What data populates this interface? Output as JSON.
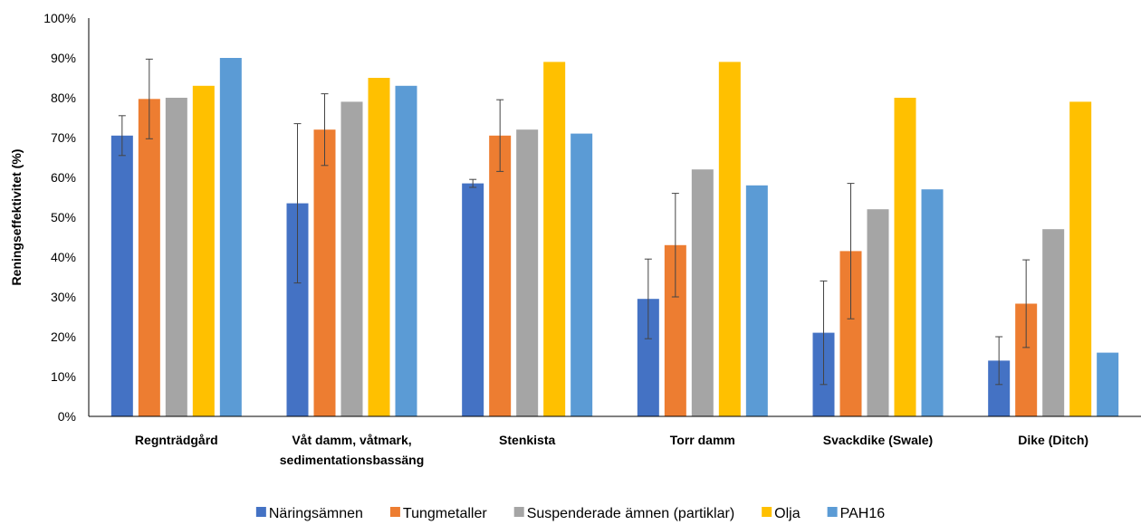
{
  "chart_data": {
    "type": "bar",
    "title": "",
    "xlabel": "",
    "ylabel": "Reningseffektivitet (%)",
    "ylim": [
      0,
      100
    ],
    "yticks": [
      "0%",
      "10%",
      "20%",
      "30%",
      "40%",
      "50%",
      "60%",
      "70%",
      "80%",
      "90%",
      "100%"
    ],
    "grid": false,
    "legend_position": "bottom",
    "categories": [
      [
        "Regnträdgård"
      ],
      [
        "Våt damm, våtmark,",
        "sedimentationsbassäng"
      ],
      [
        "Stenkista"
      ],
      [
        "Torr damm"
      ],
      [
        "Svackdike (Swale)"
      ],
      [
        "Dike (Ditch)"
      ]
    ],
    "series": [
      {
        "name": "Näringsämnen",
        "color": "#4472C4",
        "values": [
          70.5,
          53.5,
          58.5,
          29.5,
          21,
          14
        ],
        "error": [
          5,
          20,
          1,
          10,
          13,
          6
        ]
      },
      {
        "name": "Tungmetaller",
        "color": "#ED7D31",
        "values": [
          79.7,
          72,
          70.5,
          43,
          41.5,
          28.3
        ],
        "error": [
          10,
          9,
          9,
          13,
          17,
          11
        ]
      },
      {
        "name": "Suspenderade ämnen (partiklar)",
        "color": "#A5A5A5",
        "values": [
          80,
          79,
          72,
          62,
          52,
          47
        ],
        "error": null
      },
      {
        "name": "Olja",
        "color": "#FFC000",
        "values": [
          83,
          85,
          89,
          89,
          80,
          79
        ],
        "error": null
      },
      {
        "name": "PAH16",
        "color": "#5B9BD5",
        "values": [
          90,
          83,
          71,
          58,
          57,
          16
        ],
        "error": null
      }
    ]
  }
}
